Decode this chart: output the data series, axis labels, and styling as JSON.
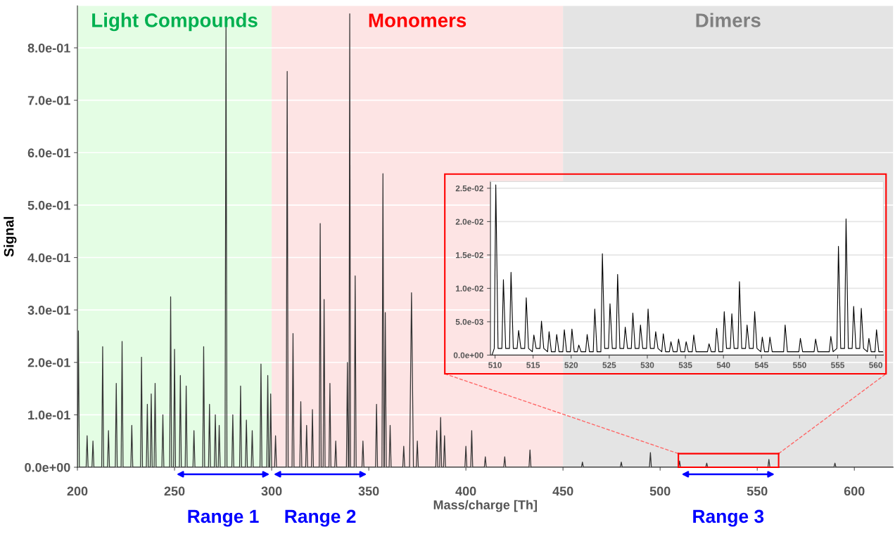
{
  "chart_data": [
    {
      "type": "line",
      "xlabel": "Mass/charge [Th]",
      "ylabel": "Signal",
      "xlim": [
        200,
        620
      ],
      "ylim": [
        0,
        0.88
      ],
      "xticks": [
        200,
        250,
        300,
        350,
        400,
        450,
        500,
        550,
        600
      ],
      "yticks": [
        {
          "value": 0,
          "label": "0.0e+00"
        },
        {
          "value": 0.1,
          "label": "1.0e-01"
        },
        {
          "value": 0.2,
          "label": "2.0e-01"
        },
        {
          "value": 0.3,
          "label": "3.0e-01"
        },
        {
          "value": 0.4,
          "label": "4.0e-01"
        },
        {
          "value": 0.5,
          "label": "5.0e-01"
        },
        {
          "value": 0.6,
          "label": "6.0e-01"
        },
        {
          "value": 0.7,
          "label": "7.0e-01"
        },
        {
          "value": 0.8,
          "label": "8.0e-01"
        }
      ],
      "grid": "y",
      "line_style": "solid",
      "marker": "none",
      "bands": [
        {
          "axis": "x",
          "from": 200,
          "to": 300,
          "label": "Light Compounds",
          "color": "#e4fde4"
        },
        {
          "axis": "x",
          "from": 300,
          "to": 450,
          "label": "Monomers",
          "color": "#fde4e4"
        },
        {
          "axis": "x",
          "from": 450,
          "to": 620,
          "label": "Dimers",
          "color": "#e4e4e4"
        }
      ],
      "annotations": [
        {
          "text": "Range 1",
          "x": 275,
          "y": 0
        },
        {
          "text": "Range 2",
          "x": 325,
          "y": 0
        },
        {
          "text": "Range 3",
          "x": 535,
          "y": 0
        }
      ],
      "series": [
        {
          "color": "#333333",
          "x": [
            200,
            200.5,
            201,
            204.5,
            205,
            205.5,
            207.5,
            208,
            208.5,
            212.5,
            213,
            213.5,
            215.5,
            216,
            216.5,
            219.5,
            220,
            220.5,
            222.5,
            223,
            223.5,
            227.5,
            228,
            228.5,
            232.5,
            233,
            233.5,
            235.5,
            236,
            236.5,
            237.5,
            238,
            238.5,
            239.5,
            240,
            240.5,
            243.5,
            244,
            244.5,
            247.5,
            248,
            248.5,
            249.5,
            250,
            250.5,
            252.5,
            253,
            253.5,
            255.5,
            256,
            256.5,
            259.5,
            260,
            260.5,
            264.5,
            265,
            265.5,
            267.5,
            268,
            268.5,
            270.5,
            271,
            271.5,
            272.5,
            273,
            273.5,
            276,
            276.5,
            277,
            279.5,
            280,
            280.5,
            283.5,
            284,
            284.5,
            286.5,
            287,
            287.5,
            289.5,
            290,
            290.5,
            294,
            294.5,
            295,
            297.5,
            298,
            298.5,
            299,
            299.5,
            300,
            301.5,
            302,
            302.5,
            307.5,
            308,
            308.5,
            310.5,
            311,
            311.5,
            314.5,
            315,
            315.5,
            317.5,
            318,
            318.5,
            320.5,
            321,
            321.5,
            324.5,
            325,
            325.5,
            326.5,
            327,
            327.5,
            329.5,
            330,
            330.5,
            332.5,
            333,
            333.5,
            338.5,
            339,
            339.5,
            339.8,
            340.2,
            340.6,
            342.5,
            343,
            343.5,
            346.5,
            347,
            347.5,
            353.5,
            354,
            354.5,
            356.8,
            357.3,
            357.8,
            358,
            358.5,
            359,
            360.5,
            361,
            361.5,
            367.5,
            368,
            368.5,
            371,
            372,
            373,
            374.5,
            375,
            375.5,
            384.5,
            385,
            385.5,
            386.5,
            387,
            387.5,
            388.5,
            389,
            389.5,
            399.5,
            400,
            400.5,
            402.5,
            403,
            403.5,
            409.5,
            410,
            410.5,
            419.5,
            420,
            420.5,
            432.5,
            433,
            433.5,
            459.5,
            460,
            460.5,
            479.5,
            480,
            480.5,
            494.5,
            495,
            495.5,
            509.5,
            510,
            510.5,
            523.5,
            524,
            524.5,
            555.5,
            556,
            556.5,
            589.5,
            590,
            590.5,
            620
          ],
          "values": [
            0,
            0.26,
            0,
            0,
            0.06,
            0,
            0,
            0.05,
            0,
            0,
            0.23,
            0,
            0,
            0.07,
            0,
            0,
            0.16,
            0,
            0,
            0.24,
            0,
            0,
            0.08,
            0,
            0,
            0.21,
            0,
            0,
            0.12,
            0,
            0,
            0.14,
            0,
            0,
            0.16,
            0,
            0,
            0.1,
            0,
            0,
            0.325,
            0,
            0,
            0.225,
            0,
            0,
            0.175,
            0,
            0,
            0.155,
            0,
            0,
            0.07,
            0,
            0,
            0.23,
            0,
            0,
            0.12,
            0,
            0,
            0.1,
            0,
            0,
            0.08,
            0,
            0,
            0.86,
            0,
            0,
            0.1,
            0,
            0,
            0.155,
            0,
            0,
            0.09,
            0,
            0,
            0.07,
            0,
            0,
            0.197,
            0,
            0,
            0.175,
            0,
            0,
            0.14,
            0,
            0,
            0.06,
            0,
            0,
            0.755,
            0,
            0,
            0.255,
            0,
            0,
            0.125,
            0,
            0,
            0.08,
            0,
            0,
            0.11,
            0,
            0,
            0.465,
            0,
            0,
            0.32,
            0,
            0,
            0.16,
            0,
            0,
            0.05,
            0,
            0,
            0.2,
            0,
            0,
            0.865,
            0,
            0,
            0.365,
            0,
            0,
            0.05,
            0,
            0,
            0.12,
            0,
            0,
            0.56,
            0,
            0,
            0.295,
            0,
            0,
            0.08,
            0,
            0,
            0.04,
            0,
            0,
            0.333,
            0,
            0,
            0.05,
            0,
            0,
            0.07,
            0,
            0,
            0.095,
            0,
            0,
            0.06,
            0,
            0,
            0.04,
            0,
            0,
            0.07,
            0,
            0,
            0.02,
            0,
            0,
            0.02,
            0,
            0,
            0.033,
            0,
            0,
            0.01,
            0,
            0,
            0.01,
            0,
            0,
            0.028,
            0,
            0,
            0.012,
            0,
            0,
            0.008,
            0,
            0,
            0.015,
            0,
            0,
            0.008,
            0,
            0
          ]
        }
      ]
    },
    {
      "type": "line",
      "xlim": [
        509.4,
        561
      ],
      "ylim": [
        0,
        0.026
      ],
      "xticks": [
        510,
        515,
        520,
        525,
        530,
        535,
        540,
        545,
        550,
        555,
        560
      ],
      "yticks": [
        {
          "value": 0,
          "label": "0.0e+00"
        },
        {
          "value": 0.005,
          "label": "5.0e-03"
        },
        {
          "value": 0.01,
          "label": "1.0e-02"
        },
        {
          "value": 0.015,
          "label": "1.5e-02"
        },
        {
          "value": 0.02,
          "label": "2.0e-02"
        },
        {
          "value": 0.025,
          "label": "2.5e-02"
        }
      ],
      "grid": "y",
      "line_style": "solid",
      "marker": "none",
      "series": [
        {
          "color": "#000000",
          "x": [
            509.6,
            509.9,
            510.1,
            510.4,
            510.9,
            511.1,
            511.4,
            511.9,
            512.1,
            512.4,
            512.9,
            513.1,
            513.4,
            513.9,
            514.1,
            514.4,
            514.9,
            515.1,
            515.4,
            515.9,
            516.1,
            516.4,
            516.9,
            517.1,
            517.4,
            517.9,
            518.1,
            518.4,
            518.9,
            519.1,
            519.4,
            519.9,
            520.1,
            520.4,
            520.8,
            521,
            521.3,
            521.9,
            522.1,
            522.4,
            522.9,
            523.1,
            523.4,
            523.9,
            524.1,
            524.4,
            524.9,
            525.1,
            525.4,
            525.9,
            526.1,
            526.4,
            526.9,
            527.1,
            527.4,
            527.9,
            528.1,
            528.4,
            528.9,
            529.1,
            529.4,
            529.9,
            530.1,
            530.4,
            530.9,
            531.1,
            531.4,
            531.9,
            532.1,
            532.4,
            532.9,
            533.1,
            533.4,
            533.9,
            534.1,
            534.4,
            534.9,
            535.1,
            535.4,
            535.9,
            536.1,
            536.4,
            537.9,
            538.1,
            538.4,
            538.9,
            539.1,
            539.4,
            539.9,
            540.1,
            540.4,
            540.9,
            541.1,
            541.4,
            541.9,
            542.1,
            542.4,
            542.9,
            543.1,
            543.4,
            543.9,
            544.1,
            544.4,
            544.9,
            545.1,
            545.4,
            545.9,
            546.1,
            546.4,
            547.9,
            548.1,
            548.4,
            549.9,
            550.1,
            550.4,
            551.9,
            552.1,
            552.4,
            553.9,
            554.1,
            554.4,
            554.9,
            555.1,
            555.4,
            555.9,
            556.1,
            556.4,
            556.9,
            557.1,
            557.4,
            557.9,
            558.1,
            558.4,
            558.9,
            559.1,
            559.4,
            559.9,
            560.1,
            560.4,
            561
          ],
          "values": [
            0,
            0.001,
            0.0255,
            0.001,
            0.001,
            0.0113,
            0.001,
            0.001,
            0.0124,
            0.001,
            0.001,
            0.0037,
            0.001,
            0.001,
            0.0086,
            0.001,
            0.0005,
            0.003,
            0.001,
            0.001,
            0.0051,
            0.001,
            0.0005,
            0.0035,
            0.0005,
            0.0005,
            0.0031,
            0.0005,
            0.0005,
            0.0038,
            0.0005,
            0.0005,
            0.0039,
            0.0005,
            0.0005,
            0.0015,
            0.0005,
            0.0005,
            0.0031,
            0.0005,
            0.0005,
            0.0069,
            0.0005,
            0.0005,
            0.0152,
            0.001,
            0.001,
            0.0077,
            0.001,
            0.001,
            0.0121,
            0.001,
            0.001,
            0.0042,
            0.001,
            0.001,
            0.0063,
            0.001,
            0.001,
            0.0045,
            0.001,
            0.001,
            0.0069,
            0.001,
            0.001,
            0.0035,
            0.001,
            0.0005,
            0.0032,
            0.0005,
            0.0005,
            0.002,
            0.0005,
            0.0005,
            0.0024,
            0.0005,
            0.0005,
            0.002,
            0.0005,
            0.0005,
            0.003,
            0.0005,
            0.0005,
            0.0017,
            0.0005,
            0.0005,
            0.004,
            0.0005,
            0.0005,
            0.0065,
            0.001,
            0.001,
            0.0062,
            0.001,
            0.001,
            0.011,
            0.001,
            0.001,
            0.0045,
            0.001,
            0.001,
            0.0065,
            0.001,
            0.0005,
            0.0027,
            0.0005,
            0.0005,
            0.0027,
            0.0005,
            0.0005,
            0.0045,
            0.0005,
            0.0005,
            0.0025,
            0.0005,
            0.0005,
            0.0024,
            0.0005,
            0.0005,
            0.0028,
            0.0005,
            0.001,
            0.0163,
            0.001,
            0.001,
            0.0204,
            0.001,
            0.001,
            0.0073,
            0.001,
            0.001,
            0.007,
            0.001,
            0.0005,
            0.0025,
            0.0005,
            0.0005,
            0.0038,
            0.0005,
            0.0005
          ]
        }
      ]
    }
  ]
}
